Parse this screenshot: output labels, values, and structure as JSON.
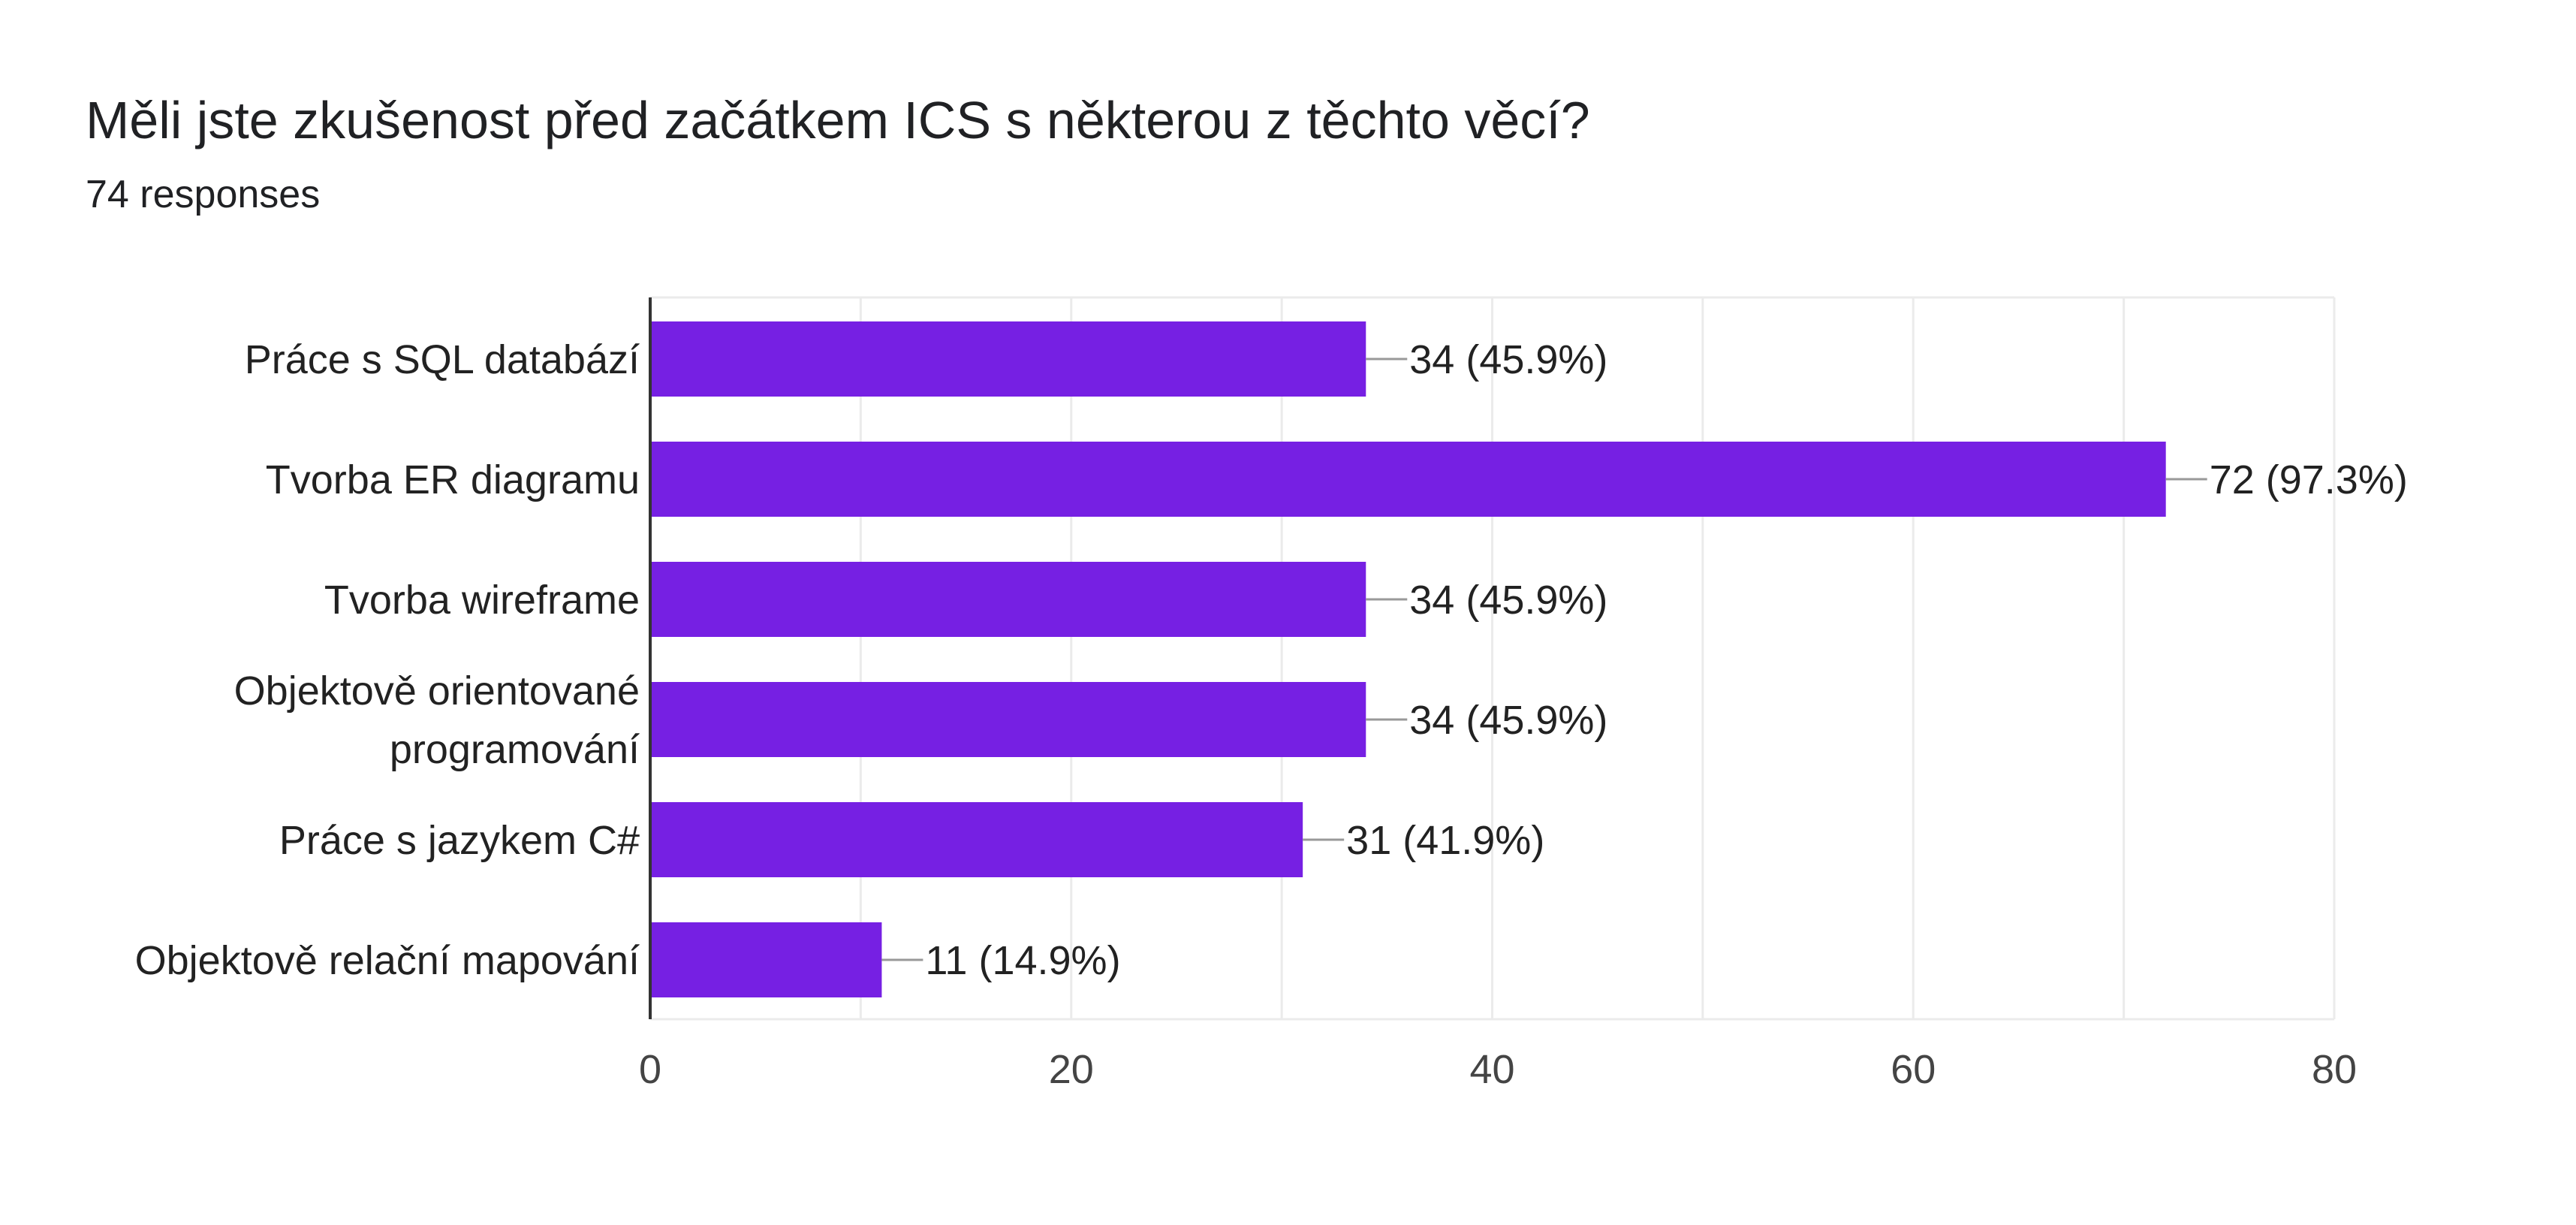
{
  "header": {
    "title": "Měli jste zkušenost před začátkem ICS s některou z těchto věcí?",
    "responses": "74 responses"
  },
  "colors": {
    "bar": "#7620e3",
    "grid": "#ebebeb",
    "axis": "#333333",
    "connector": "#999999"
  },
  "chart_data": {
    "type": "bar",
    "orientation": "horizontal",
    "categories": [
      [
        "Práce s SQL databází"
      ],
      [
        "Tvorba ER diagramu"
      ],
      [
        "Tvorba wireframe"
      ],
      [
        "Objektově orientované",
        "programování"
      ],
      [
        "Práce s jazykem C#"
      ],
      [
        "Objektově relační mapování"
      ]
    ],
    "values": [
      34,
      72,
      34,
      34,
      31,
      11
    ],
    "data_labels": [
      "34 (45.9%)",
      "72 (97.3%)",
      "34 (45.9%)",
      "34 (45.9%)",
      "31 (41.9%)",
      "11 (14.9%)"
    ],
    "xlim": [
      0,
      80
    ],
    "ticks": [
      0,
      20,
      40,
      60,
      80
    ],
    "grid": true,
    "legend": "none"
  }
}
